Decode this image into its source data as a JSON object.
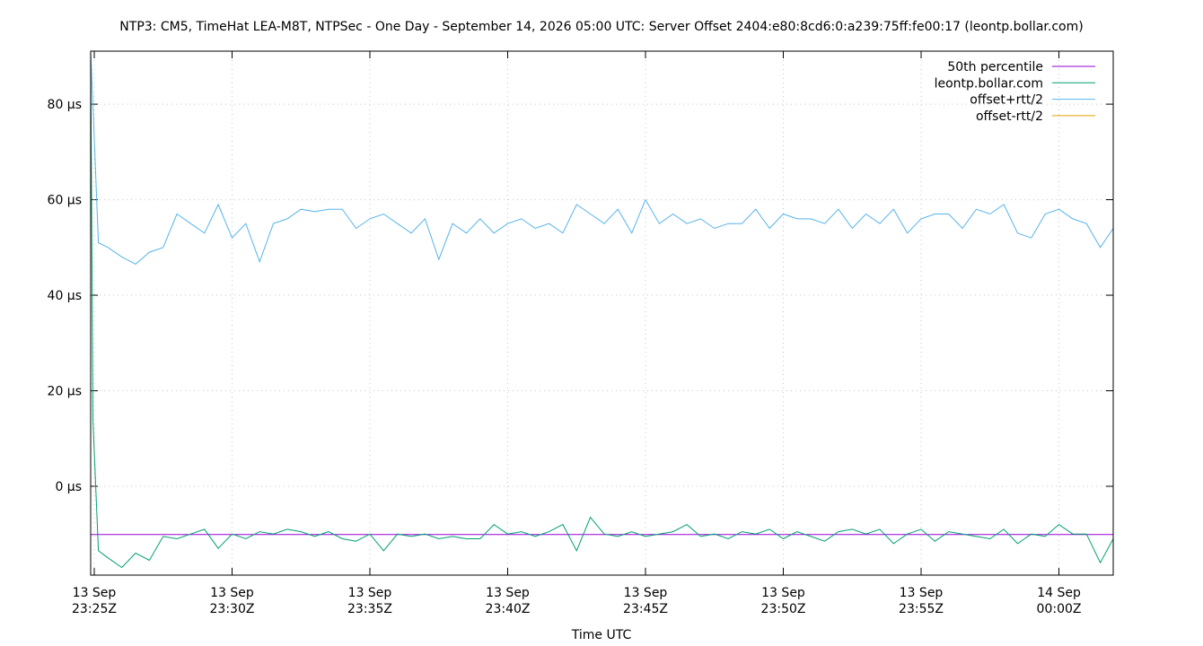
{
  "chart_data": {
    "type": "line",
    "title": "NTP3: CM5, TimeHat LEA-M8T, NTPSec - One Day - September 14, 2026 05:00 UTC: Server Offset 2404:e80:8cd6:0:a239:75ff:fe00:17 (leontp.bollar.com)",
    "xlabel": "Time UTC",
    "x": [
      -0.13,
      -0.05,
      0.15,
      0.5,
      1.0,
      1.5,
      2.0,
      2.5,
      3.0,
      3.5,
      4.0,
      4.5,
      5.0,
      5.5,
      6.0,
      6.5,
      7.0,
      7.5,
      8.0,
      8.5,
      9.0,
      9.5,
      10.0,
      10.5,
      11.0,
      11.5,
      12.0,
      12.5,
      13.0,
      13.5,
      14.0,
      14.5,
      15.0,
      15.5,
      16.0,
      16.5,
      17.0,
      17.5,
      18.0,
      18.5,
      19.0,
      19.5,
      20.0,
      20.5,
      21.0,
      21.5,
      22.0,
      22.5,
      23.0,
      23.5,
      24.0,
      24.5,
      25.0,
      25.5,
      26.0,
      26.5,
      27.0,
      27.5,
      28.0,
      28.5,
      29.0,
      29.5,
      30.0,
      30.5,
      31.0,
      31.5,
      32.0,
      32.5,
      33.0,
      33.5,
      34.0,
      34.5,
      35.0,
      35.5,
      36.0,
      36.5,
      36.97
    ],
    "series": [
      {
        "name": "50th percentile",
        "color": "#9400d3",
        "values": [
          -10.1,
          -10.1,
          -10.1,
          -10.1,
          -10.1,
          -10.1,
          -10.1,
          -10.1,
          -10.1,
          -10.1,
          -10.1,
          -10.1,
          -10.1,
          -10.1,
          -10.1,
          -10.1,
          -10.1,
          -10.1,
          -10.1,
          -10.1,
          -10.1,
          -10.1,
          -10.1,
          -10.1,
          -10.1,
          -10.1,
          -10.1,
          -10.1,
          -10.1,
          -10.1,
          -10.1,
          -10.1,
          -10.1,
          -10.1,
          -10.1,
          -10.1,
          -10.1,
          -10.1,
          -10.1,
          -10.1,
          -10.1,
          -10.1,
          -10.1,
          -10.1,
          -10.1,
          -10.1,
          -10.1,
          -10.1,
          -10.1,
          -10.1,
          -10.1,
          -10.1,
          -10.1,
          -10.1,
          -10.1,
          -10.1,
          -10.1,
          -10.1,
          -10.1,
          -10.1,
          -10.1,
          -10.1,
          -10.1,
          -10.1,
          -10.1,
          -10.1,
          -10.1,
          -10.1,
          -10.1,
          -10.1,
          -10.1,
          -10.1,
          -10.1,
          -10.1,
          -10.1,
          -10.1,
          -10.1
        ]
      },
      {
        "name": "leontp.bollar.com",
        "color": "#009e73",
        "values": [
          91,
          14,
          -13.5,
          -15,
          -17,
          -14,
          -15.5,
          -10.5,
          -11,
          -10,
          -9,
          -13,
          -10,
          -11,
          -9.5,
          -10,
          -9,
          -9.5,
          -10.5,
          -9.5,
          -11,
          -11.5,
          -10,
          -13.5,
          -10,
          -10.5,
          -10,
          -11,
          -10.5,
          -11,
          -11,
          -8,
          -10,
          -9.5,
          -10.5,
          -9.5,
          -8,
          -13.5,
          -6.5,
          -10,
          -10.5,
          -9.5,
          -10.5,
          -10,
          -9.5,
          -8,
          -10.5,
          -10,
          -11,
          -9.5,
          -10,
          -9,
          -11,
          -9.5,
          -10.5,
          -11.5,
          -9.5,
          -9,
          -10,
          -9,
          -12,
          -10,
          -9,
          -11.5,
          -9.5,
          -10,
          -10.5,
          -11,
          -9,
          -12,
          -10,
          -10.5,
          -8,
          -10,
          -10,
          -16,
          -11
        ]
      },
      {
        "name": "offset+rtt/2",
        "color": "#56b4e9",
        "values": [
          91,
          80,
          51,
          50,
          48,
          46.5,
          49,
          50,
          57,
          55,
          53,
          59,
          52,
          55,
          47,
          55,
          56,
          58,
          57.5,
          58,
          58,
          54,
          56,
          57,
          55,
          53,
          56,
          47.5,
          55,
          53,
          56,
          53,
          55,
          56,
          54,
          55,
          53,
          59,
          57,
          55,
          58,
          53,
          60,
          55,
          57,
          55,
          56,
          54,
          55,
          55,
          58,
          54,
          57,
          56,
          56,
          55,
          58,
          54,
          57,
          55,
          58,
          53,
          56,
          57,
          57,
          54,
          58,
          57,
          59,
          53,
          52,
          57,
          58,
          56,
          55,
          50,
          54
        ]
      },
      {
        "name": "offset-rtt/2",
        "color": "#e69f00",
        "values": [
          null,
          null,
          null,
          null,
          null,
          null,
          null,
          null,
          null,
          null,
          null,
          null,
          null,
          null,
          null,
          null,
          null,
          null,
          null,
          null,
          null,
          null,
          null,
          null,
          null,
          null,
          null,
          null,
          null,
          null,
          null,
          null,
          null,
          null,
          null,
          null,
          null,
          null,
          null,
          null,
          null,
          null,
          null,
          null,
          null,
          null,
          null,
          null,
          null,
          null,
          null,
          null,
          null,
          null,
          null,
          null,
          null,
          null,
          null,
          null,
          null,
          null,
          null,
          null,
          null,
          null,
          null,
          null,
          null,
          null,
          null,
          null,
          null,
          null,
          null,
          null,
          null
        ]
      }
    ],
    "xlim": [
      -0.13,
      36.97
    ],
    "xticks": [
      {
        "value": 0,
        "label": "13 Sep\n23:25Z"
      },
      {
        "value": 5,
        "label": "13 Sep\n23:30Z"
      },
      {
        "value": 10,
        "label": "13 Sep\n23:35Z"
      },
      {
        "value": 15,
        "label": "13 Sep\n23:40Z"
      },
      {
        "value": 20,
        "label": "13 Sep\n23:45Z"
      },
      {
        "value": 25,
        "label": "13 Sep\n23:50Z"
      },
      {
        "value": 30,
        "label": "13 Sep\n23:55Z"
      },
      {
        "value": 35,
        "label": "14 Sep\n00:00Z"
      }
    ],
    "ylim": [
      -18.6,
      91.1
    ],
    "yticks": [
      {
        "value": 0,
        "label": "0 µs"
      },
      {
        "value": 20,
        "label": "20 µs"
      },
      {
        "value": 40,
        "label": "40 µs"
      },
      {
        "value": 60,
        "label": "60 µs"
      },
      {
        "value": 80,
        "label": "80 µs"
      }
    ],
    "grid": true,
    "legend": "top-right"
  }
}
